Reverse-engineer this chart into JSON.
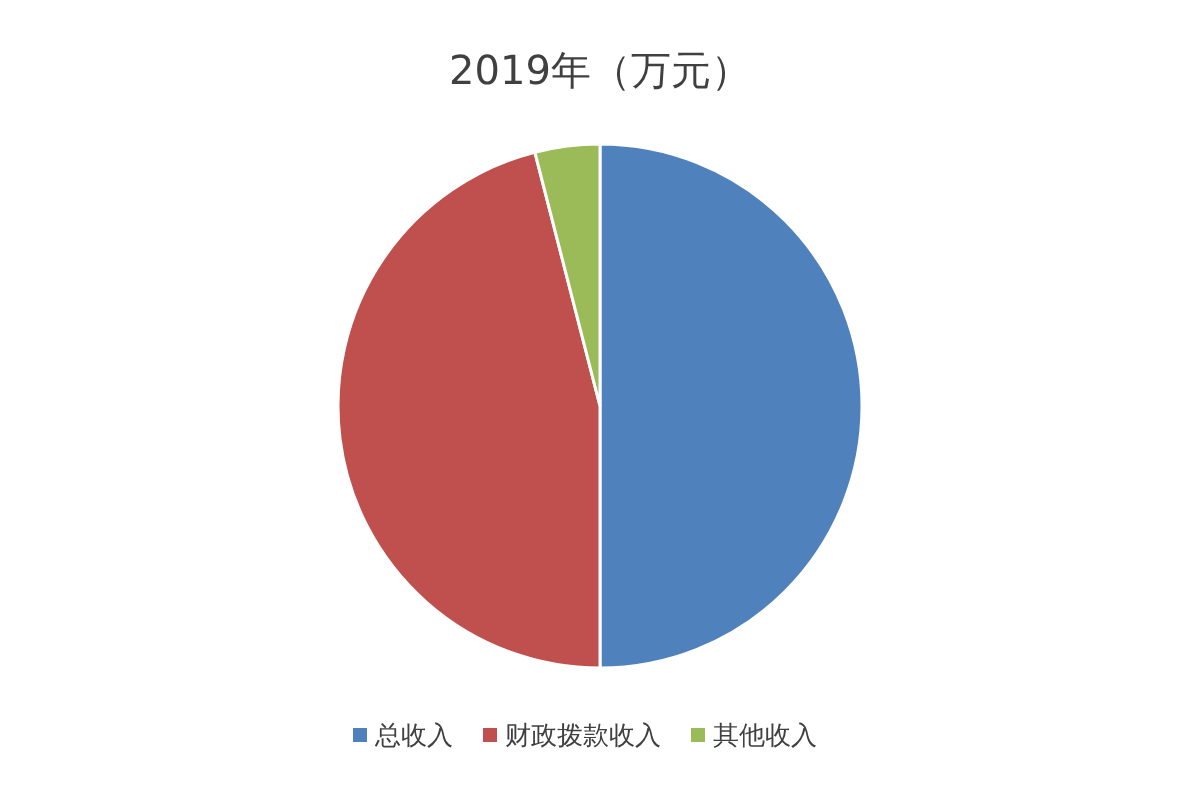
{
  "chart_data": {
    "type": "pie",
    "title": "2019年（万元）",
    "categories": [
      "总收入",
      "财政拨款收入",
      "其他收入"
    ],
    "values": [
      50,
      46,
      4
    ],
    "colors": [
      "#4f81bd",
      "#c0504d",
      "#9bbb59"
    ],
    "legend": "bottom"
  }
}
